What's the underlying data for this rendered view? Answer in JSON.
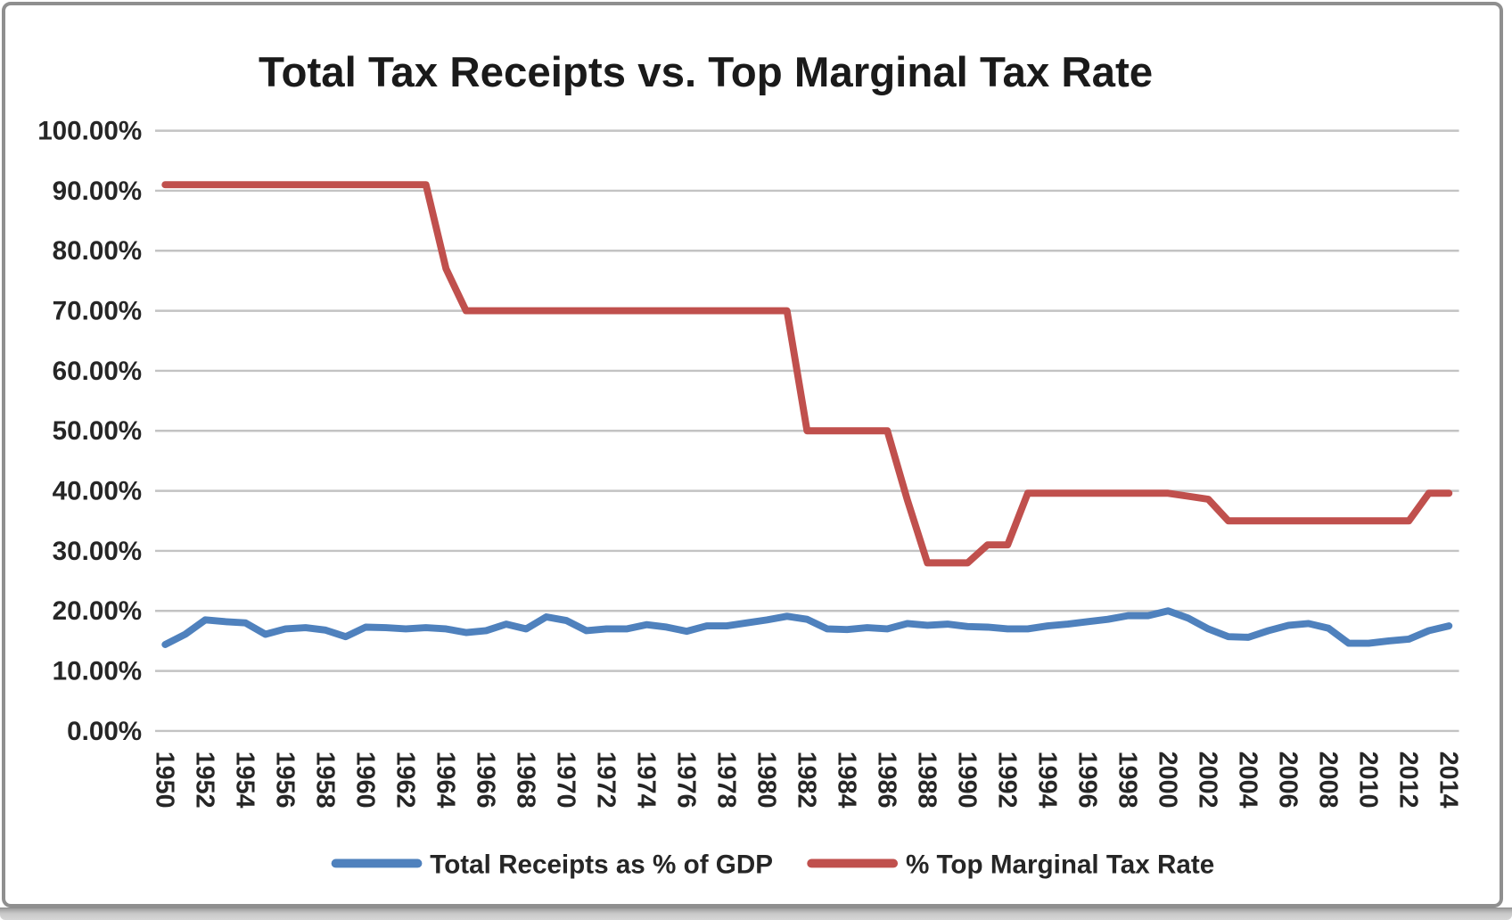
{
  "chart_data": {
    "type": "line",
    "title": "Total Tax Receipts vs. Top Marginal Tax Rate",
    "xlabel": "",
    "ylabel": "",
    "x": [
      1950,
      1951,
      1952,
      1953,
      1954,
      1955,
      1956,
      1957,
      1958,
      1959,
      1960,
      1961,
      1962,
      1963,
      1964,
      1965,
      1966,
      1967,
      1968,
      1969,
      1970,
      1971,
      1972,
      1973,
      1974,
      1975,
      1976,
      1977,
      1978,
      1979,
      1980,
      1981,
      1982,
      1983,
      1984,
      1985,
      1986,
      1987,
      1988,
      1989,
      1990,
      1991,
      1992,
      1993,
      1994,
      1995,
      1996,
      1997,
      1998,
      1999,
      2000,
      2001,
      2002,
      2003,
      2004,
      2005,
      2006,
      2007,
      2008,
      2009,
      2010,
      2011,
      2012,
      2013,
      2014
    ],
    "x_tick_step": 2,
    "x_tick_rotation_deg": 90,
    "grid": true,
    "legend_position": "bottom",
    "y_axis": {
      "min": 0,
      "max": 100,
      "step": 10
    },
    "y_ticks": [
      {
        "v": 100,
        "label": "100.00%"
      },
      {
        "v": 90,
        "label": "90.00%"
      },
      {
        "v": 80,
        "label": "80.00%"
      },
      {
        "v": 70,
        "label": "70.00%"
      },
      {
        "v": 60,
        "label": "60.00%"
      },
      {
        "v": 50,
        "label": "50.00%"
      },
      {
        "v": 40,
        "label": "40.00%"
      },
      {
        "v": 30,
        "label": "30.00%"
      },
      {
        "v": 20,
        "label": "20.00%"
      },
      {
        "v": 10,
        "label": "10.00%"
      },
      {
        "v": 0,
        "label": "0.00%"
      }
    ],
    "series": [
      {
        "name": "Total Receipts as % of GDP",
        "color": "#4f81bd",
        "values": [
          14.4,
          16.1,
          18.5,
          18.2,
          18.0,
          16.1,
          17.0,
          17.2,
          16.8,
          15.7,
          17.3,
          17.2,
          17.0,
          17.2,
          17.0,
          16.4,
          16.7,
          17.8,
          17.0,
          19.0,
          18.4,
          16.7,
          17.0,
          17.0,
          17.7,
          17.3,
          16.6,
          17.5,
          17.5,
          18.0,
          18.5,
          19.1,
          18.6,
          17.0,
          16.9,
          17.2,
          17.0,
          17.9,
          17.6,
          17.8,
          17.4,
          17.3,
          17.0,
          17.0,
          17.5,
          17.8,
          18.2,
          18.6,
          19.2,
          19.2,
          20.0,
          18.8,
          17.0,
          15.7,
          15.6,
          16.7,
          17.6,
          17.9,
          17.1,
          14.6,
          14.6,
          15.0,
          15.3,
          16.7,
          17.5
        ]
      },
      {
        "name": "% Top Marginal Tax Rate",
        "color": "#c0504d",
        "values": [
          91,
          91,
          91,
          91,
          91,
          91,
          91,
          91,
          91,
          91,
          91,
          91,
          91,
          91,
          77,
          70,
          70,
          70,
          70,
          70,
          70,
          70,
          70,
          70,
          70,
          70,
          70,
          70,
          70,
          70,
          70,
          70,
          50,
          50,
          50,
          50,
          50,
          38.5,
          28,
          28,
          28,
          31,
          31,
          39.6,
          39.6,
          39.6,
          39.6,
          39.6,
          39.6,
          39.6,
          39.6,
          39.1,
          38.6,
          35,
          35,
          35,
          35,
          35,
          35,
          35,
          35,
          35,
          35,
          39.6,
          39.6
        ]
      }
    ],
    "gridline_color": "#c3c3c3"
  }
}
